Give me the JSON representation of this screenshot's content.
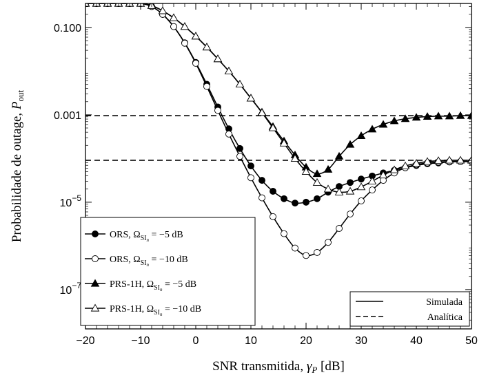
{
  "chart_data": {
    "type": "line",
    "xlabel": "SNR transmitida, γ_P [dB]",
    "xlabel_main": "SNR transmitida, ",
    "xlabel_symbol": "γ",
    "xlabel_sub": "P",
    "xlabel_unit": " [dB]",
    "ylabel": "Probabilidade de outage, P_out",
    "ylabel_main": "Probabilidade de outage, ",
    "ylabel_symbol": "P",
    "ylabel_sub": "out",
    "xlim": [
      -20,
      50
    ],
    "ylim_log10": [
      -7.9,
      -0.45
    ],
    "y_scale": "log",
    "x_ticks": [
      -20,
      -10,
      0,
      10,
      20,
      30,
      40,
      50
    ],
    "x_tick_labels": [
      "−20",
      "−10",
      "0",
      "10",
      "20",
      "30",
      "40",
      "50"
    ],
    "y_ticks": [
      {
        "log10": -1,
        "label": "0.100",
        "kind": "plain"
      },
      {
        "log10": -3,
        "label": "0.001",
        "kind": "plain"
      },
      {
        "log10": -5,
        "label": "10",
        "exp": "−5",
        "kind": "power"
      },
      {
        "log10": -7,
        "label": "10",
        "exp": "−7",
        "kind": "power"
      }
    ],
    "x_minor_step": 2,
    "series": [
      {
        "name": "ORS, Ω_SIn = −5 dB",
        "legend_text": "ORS, ",
        "legend_omega": "Ω",
        "legend_sub": "SI",
        "legend_subsub": "n",
        "legend_value": " = −5 dB",
        "marker": "filled-circle",
        "x": [
          -20,
          -18,
          -16,
          -14,
          -12,
          -10,
          -8,
          -6,
          -4,
          -2,
          0,
          2,
          4,
          6,
          8,
          10,
          12,
          14,
          16,
          18,
          20,
          22,
          24,
          26,
          28,
          30,
          32,
          34,
          36,
          38,
          40,
          42,
          44,
          46,
          48,
          50
        ],
        "log10_y": [
          -0.45,
          -0.45,
          -0.45,
          -0.45,
          -0.45,
          -0.45,
          -0.52,
          -0.7,
          -0.98,
          -1.35,
          -1.8,
          -2.3,
          -2.82,
          -3.32,
          -3.77,
          -4.17,
          -4.5,
          -4.75,
          -4.92,
          -5.02,
          -5.0,
          -4.92,
          -4.77,
          -4.64,
          -4.55,
          -4.47,
          -4.4,
          -4.33,
          -4.27,
          -4.21,
          -4.16,
          -4.12,
          -4.1,
          -4.08,
          -4.07,
          -4.07
        ]
      },
      {
        "name": "ORS, Ω_SIn = −10 dB",
        "legend_text": "ORS, ",
        "legend_omega": "Ω",
        "legend_sub": "SI",
        "legend_subsub": "n",
        "legend_value": " = −10 dB",
        "marker": "open-circle",
        "x": [
          -20,
          -18,
          -16,
          -14,
          -12,
          -10,
          -8,
          -6,
          -4,
          -2,
          0,
          2,
          4,
          6,
          8,
          10,
          12,
          14,
          16,
          18,
          20,
          22,
          24,
          26,
          28,
          30,
          32,
          34,
          36,
          38,
          40,
          42,
          44,
          46,
          48,
          50
        ],
        "log10_y": [
          -0.45,
          -0.45,
          -0.45,
          -0.45,
          -0.45,
          -0.45,
          -0.52,
          -0.7,
          -0.98,
          -1.36,
          -1.82,
          -2.35,
          -2.9,
          -3.44,
          -3.95,
          -4.44,
          -4.9,
          -5.33,
          -5.72,
          -6.05,
          -6.22,
          -6.15,
          -5.92,
          -5.6,
          -5.27,
          -4.97,
          -4.72,
          -4.5,
          -4.33,
          -4.21,
          -4.14,
          -4.1,
          -4.08,
          -4.07,
          -4.07,
          -4.07
        ]
      },
      {
        "name": "PRS-1H, Ω_SIn = −5 dB",
        "legend_text": "PRS-1H, ",
        "legend_omega": "Ω",
        "legend_sub": "SI",
        "legend_subsub": "n",
        "legend_value": " = −5 dB",
        "marker": "filled-triangle",
        "x": [
          -20,
          -18,
          -16,
          -14,
          -12,
          -10,
          -8,
          -6,
          -4,
          -2,
          0,
          2,
          4,
          6,
          8,
          10,
          12,
          14,
          16,
          18,
          20,
          22,
          24,
          26,
          28,
          30,
          32,
          34,
          36,
          38,
          40,
          42,
          44,
          46,
          48,
          50
        ],
        "log10_y": [
          -0.45,
          -0.45,
          -0.45,
          -0.45,
          -0.45,
          -0.45,
          -0.5,
          -0.62,
          -0.78,
          -0.98,
          -1.2,
          -1.45,
          -1.72,
          -2.0,
          -2.3,
          -2.62,
          -2.94,
          -3.27,
          -3.6,
          -3.92,
          -4.2,
          -4.35,
          -4.25,
          -3.95,
          -3.68,
          -3.48,
          -3.33,
          -3.22,
          -3.14,
          -3.09,
          -3.06,
          -3.04,
          -3.03,
          -3.03,
          -3.02,
          -3.02
        ]
      },
      {
        "name": "PRS-1H, Ω_SIn = −10 dB",
        "legend_text": "PRS-1H, ",
        "legend_omega": "Ω",
        "legend_sub": "SI",
        "legend_subsub": "n",
        "legend_value": " = −10 dB",
        "marker": "open-triangle",
        "x": [
          -20,
          -18,
          -16,
          -14,
          -12,
          -10,
          -8,
          -6,
          -4,
          -2,
          0,
          2,
          4,
          6,
          8,
          10,
          12,
          14,
          16,
          18,
          20,
          22,
          24,
          26,
          28,
          30,
          32,
          34,
          36,
          38,
          40,
          42,
          44,
          46,
          48,
          50
        ],
        "log10_y": [
          -0.45,
          -0.45,
          -0.45,
          -0.45,
          -0.45,
          -0.45,
          -0.5,
          -0.62,
          -0.78,
          -0.98,
          -1.2,
          -1.45,
          -1.72,
          -2.0,
          -2.3,
          -2.62,
          -2.95,
          -3.3,
          -3.65,
          -4.0,
          -4.3,
          -4.55,
          -4.7,
          -4.77,
          -4.75,
          -4.65,
          -4.52,
          -4.38,
          -4.26,
          -4.17,
          -4.11,
          -4.07,
          -4.05,
          -4.04,
          -4.04,
          -4.04
        ]
      }
    ],
    "reference_lines": [
      {
        "name": "Analítica",
        "log10_y": -3.02,
        "dash": "dashed"
      },
      {
        "name": "Analítica",
        "log10_y": -4.04,
        "dash": "dashed"
      }
    ],
    "legend_lines": [
      {
        "label": "Simulada",
        "style": "solid"
      },
      {
        "label": "Analítica",
        "style": "dashed"
      }
    ],
    "grid": false,
    "legend_series_position": "bottom-left",
    "legend_lines_position": "bottom-right"
  }
}
